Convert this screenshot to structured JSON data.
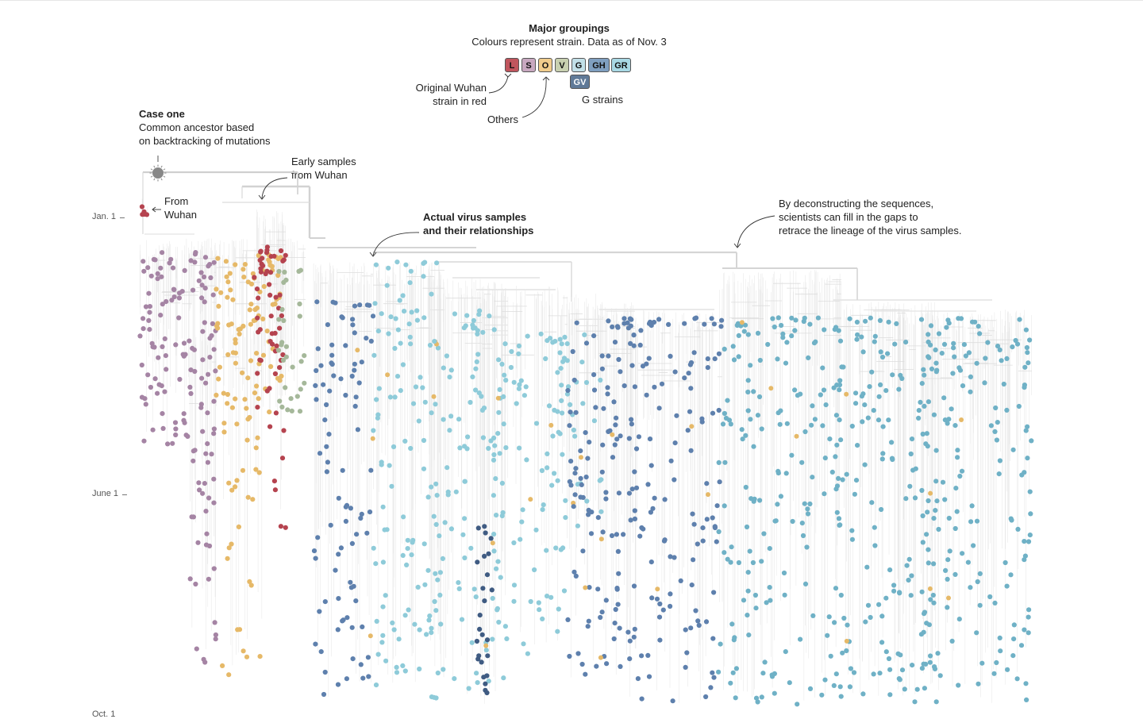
{
  "legend": {
    "title": "Major groupings",
    "subtitle": "Colours represent strain. Data as of Nov. 3",
    "strains": [
      {
        "code": "L",
        "color": "#c0555d"
      },
      {
        "code": "S",
        "color": "#c8a8c0"
      },
      {
        "code": "O",
        "color": "#f0cc8c"
      },
      {
        "code": "V",
        "color": "#c8d0b0"
      },
      {
        "code": "G",
        "color": "#c2e0e8"
      },
      {
        "code": "GH",
        "color": "#7f9fc0"
      },
      {
        "code": "GR",
        "color": "#a8d8e4"
      },
      {
        "code": "GV",
        "color": "#607a98"
      }
    ],
    "note_wuhan": "Original Wuhan\nstrain in red",
    "note_others": "Others",
    "note_g": "G strains"
  },
  "annotations": {
    "case_one_title": "Case one",
    "case_one_text": "Common ancestor based\non backtracking of mutations",
    "from_wuhan": "From\nWuhan",
    "early_samples": "Early samples\nfrom Wuhan",
    "actual_samples": "Actual virus samples\nand their relationships",
    "deconstructing": "By deconstructing the sequences,\nscientists can fill in the gaps to\nretrace the lineage of the virus samples."
  },
  "axis": {
    "labels": [
      "Jan. 1",
      "June 1",
      "Oct. 1"
    ]
  },
  "colors": {
    "L": "#b5434f",
    "S": "#a584a4",
    "O": "#e6b968",
    "V": "#a5b89a",
    "G": "#8ecbd9",
    "GH": "#5e80ad",
    "GR": "#6fb1c6",
    "GV": "#3f5b82",
    "branch": "#d9d9d9"
  }
}
